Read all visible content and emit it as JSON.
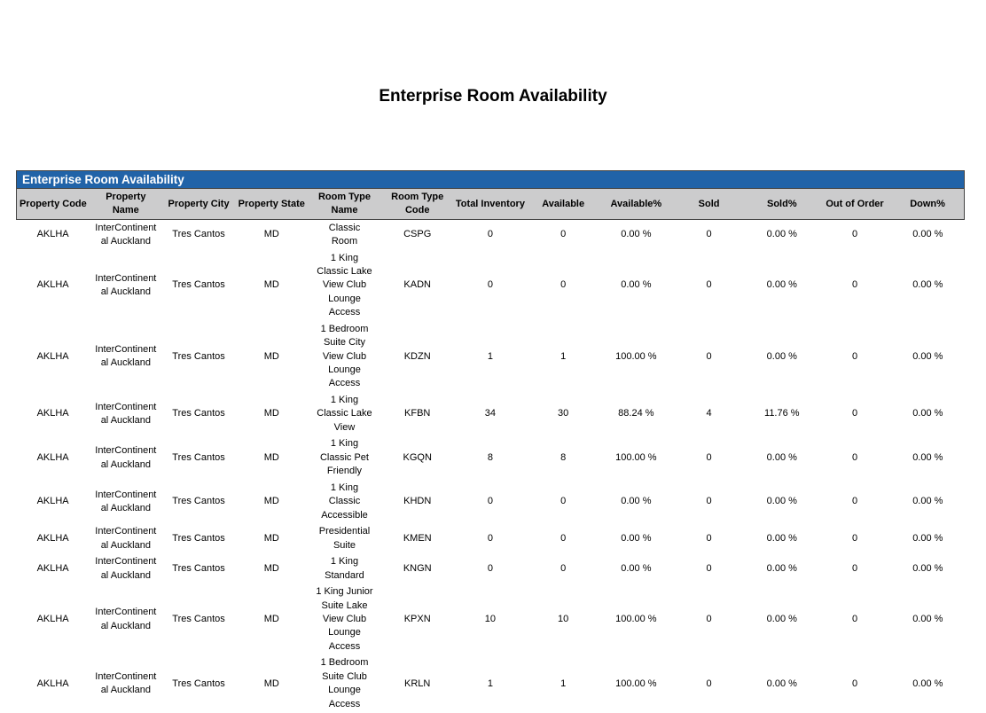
{
  "title": "Enterprise Room Availability",
  "report": {
    "band_title": "Enterprise Room Availability",
    "columns": [
      "Property Code",
      "Property Name",
      "Property City",
      "Property State",
      "Room Type Name",
      "Room Type Code",
      "Total Inventory",
      "Available",
      "Available%",
      "Sold",
      "Sold%",
      "Out of Order",
      "Down%"
    ],
    "rows": [
      [
        "AKLHA",
        "InterContinental Auckland",
        "Tres Cantos",
        "MD",
        "Classic Room",
        "CSPG",
        "0",
        "0",
        "0.00 %",
        "0",
        "0.00 %",
        "0",
        "0.00 %"
      ],
      [
        "AKLHA",
        "InterContinental Auckland",
        "Tres Cantos",
        "MD",
        "1 King Classic Lake View Club Lounge Access",
        "KADN",
        "0",
        "0",
        "0.00 %",
        "0",
        "0.00 %",
        "0",
        "0.00 %"
      ],
      [
        "AKLHA",
        "InterContinental Auckland",
        "Tres Cantos",
        "MD",
        "1 Bedroom Suite City View Club Lounge Access",
        "KDZN",
        "1",
        "1",
        "100.00 %",
        "0",
        "0.00 %",
        "0",
        "0.00 %"
      ],
      [
        "AKLHA",
        "InterContinental Auckland",
        "Tres Cantos",
        "MD",
        "1 King Classic Lake View",
        "KFBN",
        "34",
        "30",
        "88.24 %",
        "4",
        "11.76 %",
        "0",
        "0.00 %"
      ],
      [
        "AKLHA",
        "InterContinental Auckland",
        "Tres Cantos",
        "MD",
        "1 King Classic Pet Friendly",
        "KGQN",
        "8",
        "8",
        "100.00 %",
        "0",
        "0.00 %",
        "0",
        "0.00 %"
      ],
      [
        "AKLHA",
        "InterContinental Auckland",
        "Tres Cantos",
        "MD",
        "1 King Classic Accessible",
        "KHDN",
        "0",
        "0",
        "0.00 %",
        "0",
        "0.00 %",
        "0",
        "0.00 %"
      ],
      [
        "AKLHA",
        "InterContinental Auckland",
        "Tres Cantos",
        "MD",
        "Presidential Suite",
        "KMEN",
        "0",
        "0",
        "0.00 %",
        "0",
        "0.00 %",
        "0",
        "0.00 %"
      ],
      [
        "AKLHA",
        "InterContinental Auckland",
        "Tres Cantos",
        "MD",
        "1 King Standard",
        "KNGN",
        "0",
        "0",
        "0.00 %",
        "0",
        "0.00 %",
        "0",
        "0.00 %"
      ],
      [
        "AKLHA",
        "InterContinental Auckland",
        "Tres Cantos",
        "MD",
        "1 King Junior Suite Lake View Club Lounge Access",
        "KPXN",
        "10",
        "10",
        "100.00 %",
        "0",
        "0.00 %",
        "0",
        "0.00 %"
      ],
      [
        "AKLHA",
        "InterContinental Auckland",
        "Tres Cantos",
        "MD",
        "1 Bedroom Suite Club Lounge Access",
        "KRLN",
        "1",
        "1",
        "100.00 %",
        "0",
        "0.00 %",
        "0",
        "0.00 %"
      ]
    ]
  }
}
